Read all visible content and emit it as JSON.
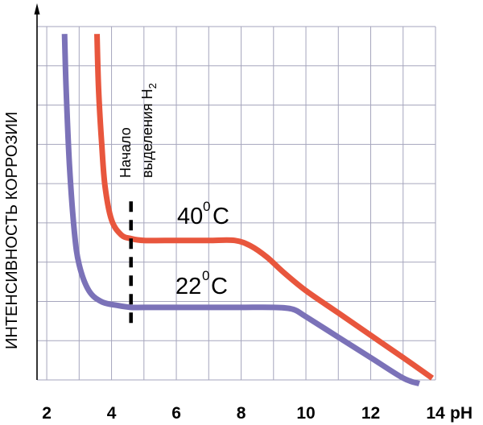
{
  "chart_data": {
    "type": "line",
    "xlabel": "pH",
    "ylabel": "ИНТЕНСИВНОСТЬ КОРРОЗИИ",
    "x_ticks": [
      "2",
      "4",
      "6",
      "8",
      "10",
      "12",
      "14"
    ],
    "xlim": [
      1.7,
      14.0
    ],
    "ylim": [
      0,
      9.5
    ],
    "grid": true,
    "series": [
      {
        "name": "40°C",
        "color": "#e8563d",
        "x": [
          3.55,
          3.6,
          3.7,
          3.8,
          4.0,
          4.3,
          4.6,
          5.0,
          6.0,
          7.0,
          7.8,
          8.3,
          8.8,
          9.3,
          10.0,
          11.0,
          12.0,
          13.0,
          13.9
        ],
        "y": [
          9.3,
          7.8,
          6.3,
          5.2,
          4.3,
          3.9,
          3.8,
          3.75,
          3.75,
          3.75,
          3.75,
          3.6,
          3.3,
          2.9,
          2.4,
          1.8,
          1.2,
          0.6,
          0.05
        ]
      },
      {
        "name": "22°C",
        "color": "#7b72b8",
        "x": [
          2.55,
          2.6,
          2.7,
          2.85,
          3.0,
          3.3,
          3.7,
          4.2,
          4.6,
          5.0,
          6.0,
          7.0,
          8.0,
          9.0,
          9.6,
          10.0,
          11.0,
          12.0,
          13.0,
          13.5
        ],
        "y": [
          9.3,
          7.8,
          5.8,
          4.0,
          3.1,
          2.4,
          2.1,
          2.0,
          1.95,
          1.95,
          1.95,
          1.95,
          1.95,
          1.95,
          1.9,
          1.7,
          1.15,
          0.6,
          0.05,
          -0.1
        ]
      }
    ],
    "annotations": {
      "marker_line": {
        "label_line1": "Начало",
        "label_line2": "выделения H",
        "label_sub": "2",
        "x": 4.6,
        "y_range": [
          1.5,
          4.8
        ]
      },
      "curve_40": {
        "text": "40",
        "sup": "0",
        "unit": "C"
      },
      "curve_22": {
        "text": "22",
        "sup": "0",
        "unit": "C"
      }
    }
  }
}
